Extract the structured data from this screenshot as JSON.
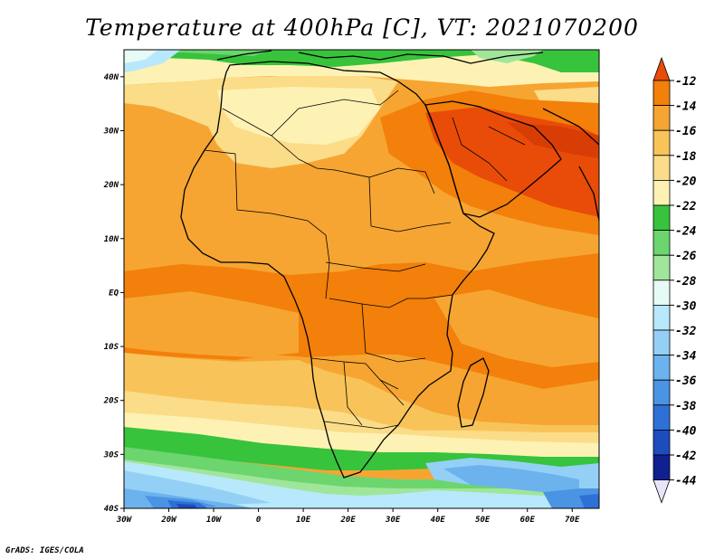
{
  "title": "Temperature at 400hPa [C], VT: 2021070200",
  "credit": "GrADS: IGES/COLA",
  "map": {
    "lon_range": [
      -30,
      76
    ],
    "lat_range": [
      -40,
      45
    ],
    "lon_ticks": [
      {
        "value": -30,
        "label": "30W"
      },
      {
        "value": -20,
        "label": "20W"
      },
      {
        "value": -10,
        "label": "10W"
      },
      {
        "value": 0,
        "label": "0"
      },
      {
        "value": 10,
        "label": "10E"
      },
      {
        "value": 20,
        "label": "20E"
      },
      {
        "value": 30,
        "label": "30E"
      },
      {
        "value": 40,
        "label": "40E"
      },
      {
        "value": 50,
        "label": "50E"
      },
      {
        "value": 60,
        "label": "60E"
      },
      {
        "value": 70,
        "label": "70E"
      }
    ],
    "lat_ticks": [
      {
        "value": 40,
        "label": "40N"
      },
      {
        "value": 30,
        "label": "30N"
      },
      {
        "value": 20,
        "label": "20N"
      },
      {
        "value": 10,
        "label": "10N"
      },
      {
        "value": 0,
        "label": "EQ"
      },
      {
        "value": -10,
        "label": "10S"
      },
      {
        "value": -20,
        "label": "20S"
      },
      {
        "value": -30,
        "label": "30S"
      },
      {
        "value": -40,
        "label": "40S"
      }
    ]
  },
  "colorbar": {
    "labels": [
      "-12",
      "-14",
      "-16",
      "-18",
      "-20",
      "-22",
      "-24",
      "-26",
      "-28",
      "-30",
      "-32",
      "-34",
      "-36",
      "-38",
      "-40",
      "-42",
      "-44"
    ],
    "colors": [
      "#e84c08",
      "#f2800a",
      "#f6a532",
      "#f8c45a",
      "#fbdc88",
      "#fdf2b4",
      "#37c33c",
      "#6cd56e",
      "#a0e69a",
      "#e6fbf5",
      "#b8e8fb",
      "#94d0f6",
      "#6cb3ee",
      "#4b93e3",
      "#2f70d7",
      "#1d4cbd",
      "#0f2090",
      "#e8e4fb"
    ]
  }
}
